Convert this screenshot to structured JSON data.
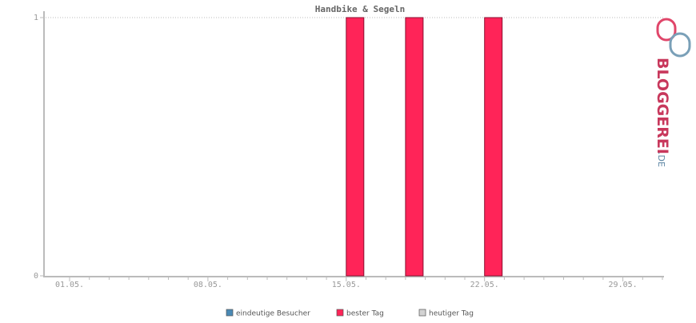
{
  "chart_data": {
    "type": "bar",
    "title": "Handbike & Segeln",
    "categories": [
      "01.05.",
      null,
      null,
      null,
      null,
      null,
      null,
      "08.05.",
      null,
      null,
      null,
      null,
      null,
      null,
      "15.05.",
      null,
      null,
      null,
      null,
      null,
      null,
      "22.05.",
      null,
      null,
      null,
      null,
      null,
      null,
      "29.05.",
      null,
      null
    ],
    "series": [
      {
        "name": "eindeutige Besucher",
        "color": "#4a8ab5",
        "values": [
          0,
          0,
          0,
          0,
          0,
          0,
          0,
          0,
          0,
          0,
          0,
          0,
          0,
          0,
          0,
          0,
          0,
          0,
          0,
          0,
          0,
          0,
          0,
          0,
          0,
          0,
          0,
          0,
          0,
          0,
          0
        ]
      },
      {
        "name": "bester Tag",
        "color": "#ff2458",
        "values": [
          0,
          0,
          0,
          0,
          0,
          0,
          0,
          0,
          0,
          0,
          0,
          0,
          0,
          0,
          1,
          0,
          0,
          1,
          0,
          0,
          0,
          1,
          0,
          0,
          0,
          0,
          0,
          0,
          0,
          0,
          0
        ]
      },
      {
        "name": "heutiger Tag",
        "color": "#d3d3d3",
        "values": [
          0,
          0,
          0,
          0,
          0,
          0,
          0,
          0,
          0,
          0,
          0,
          0,
          0,
          0,
          0,
          0,
          0,
          0,
          0,
          0,
          0,
          0,
          0,
          0,
          0,
          0,
          0,
          0,
          0,
          0,
          0
        ]
      }
    ],
    "ylim": [
      0,
      1
    ],
    "yticks": [
      0,
      1
    ],
    "grid": true
  },
  "logo": {
    "text": "BLOGGEREI",
    "suffix": ".DE"
  }
}
